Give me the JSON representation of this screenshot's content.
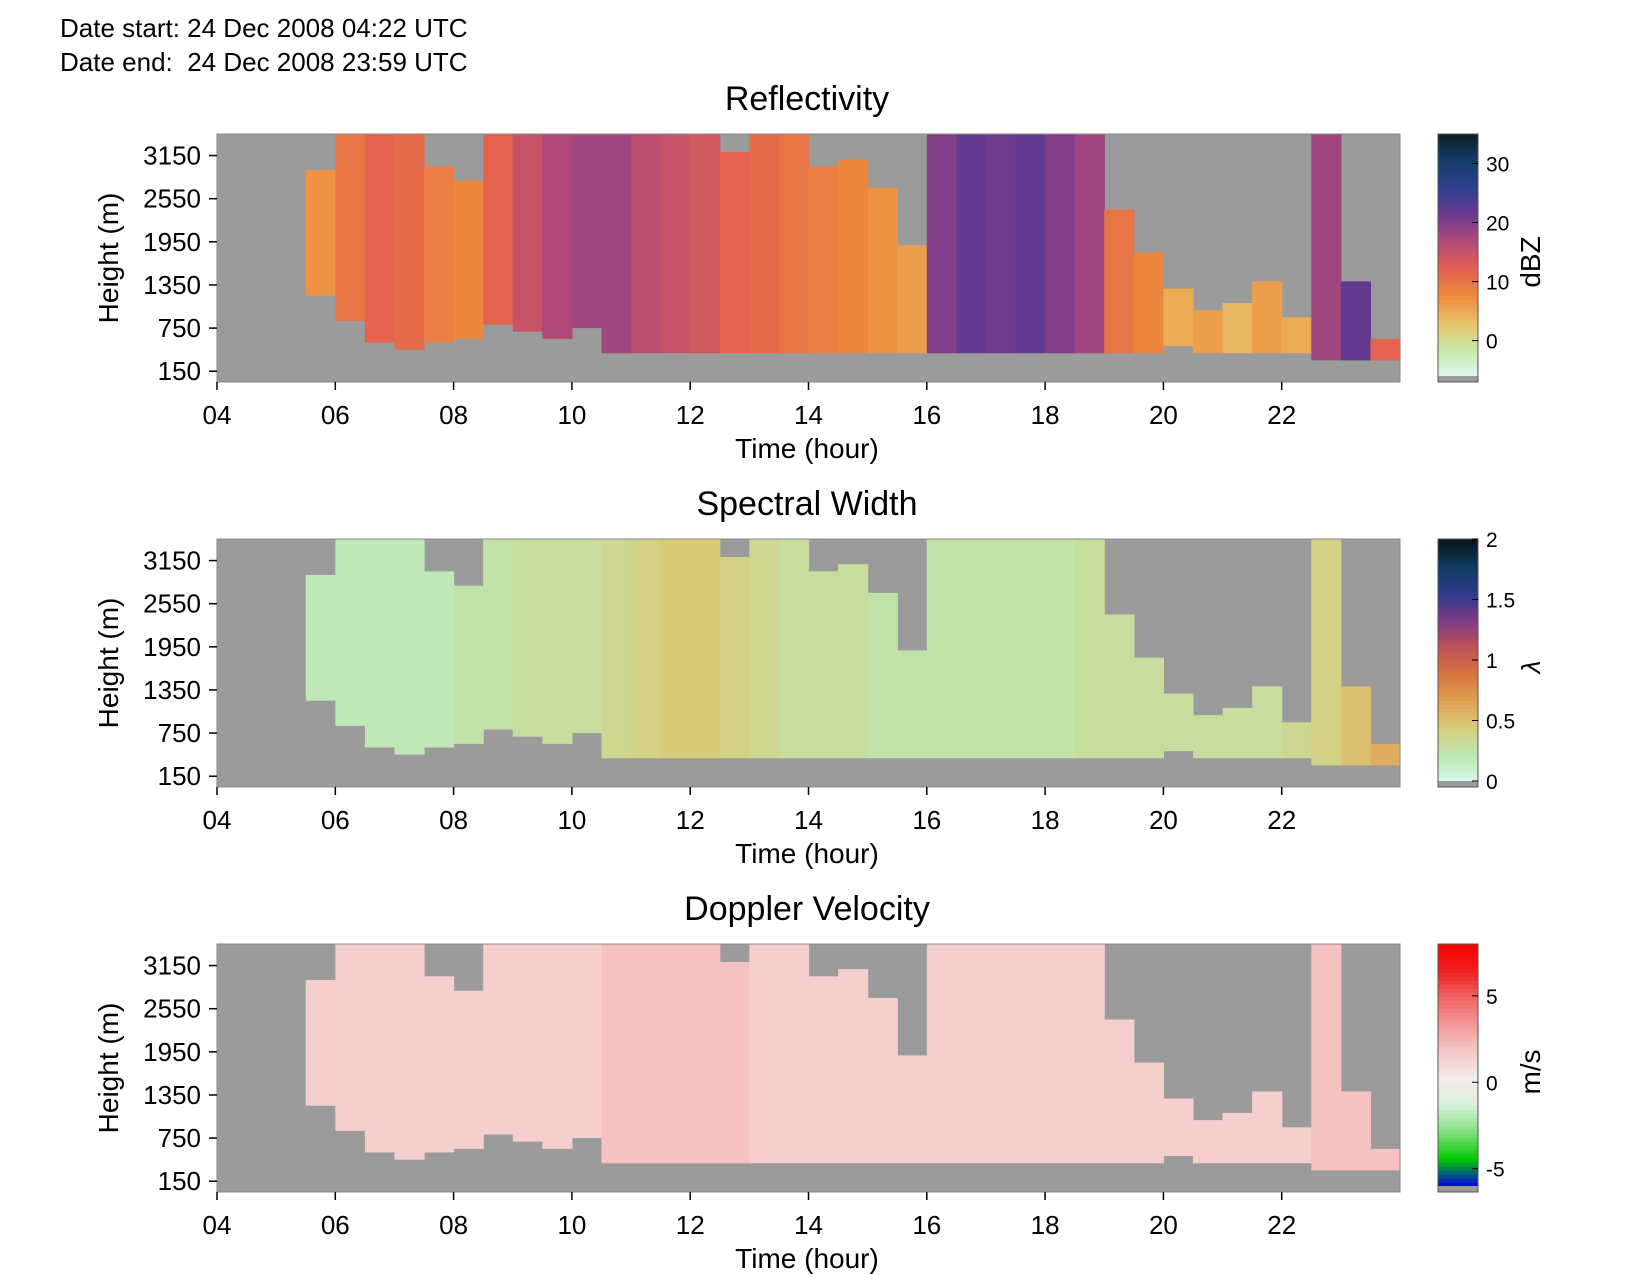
{
  "header": {
    "date_start": "Date start: 24 Dec 2008 04:22 UTC",
    "date_end": "Date end:  24 Dec 2008 23:59 UTC"
  },
  "chart_data": [
    {
      "type": "heatmap",
      "title": "Reflectivity",
      "xlabel": "Time (hour)",
      "ylabel": "Height (m)",
      "x_ticks": [
        "04",
        "06",
        "08",
        "10",
        "12",
        "14",
        "16",
        "18",
        "20",
        "22"
      ],
      "x_range_hours": [
        4,
        24
      ],
      "y_ticks": [
        "150",
        "750",
        "1350",
        "1950",
        "2550",
        "3150"
      ],
      "y_range_m": [
        0,
        3450
      ],
      "colorbar": {
        "label": "dBZ",
        "ticks": [
          "0",
          "10",
          "20",
          "30"
        ],
        "range": [
          -6,
          35
        ],
        "colors": [
          "#dff7ee",
          "#c8e8a8",
          "#e8c26a",
          "#ef8a3d",
          "#e2614f",
          "#b44a78",
          "#6b3a8e",
          "#2e3f8f",
          "#163e6a",
          "#0b1f24"
        ],
        "missing_color": "#9b9b9b"
      },
      "cloud_top_m": [
        0,
        0,
        0,
        2950,
        3450,
        3450,
        3450,
        3000,
        2800,
        3450,
        3450,
        3450,
        3450,
        3450,
        3450,
        3450,
        3450,
        3200,
        3450,
        3450,
        3000,
        3100,
        2700,
        1900,
        3450,
        3450,
        3450,
        3450,
        3450,
        3450,
        2400,
        1800,
        1300,
        1000,
        1100,
        1400,
        900,
        3450,
        1400,
        600
      ],
      "cloud_base_m": [
        0,
        0,
        0,
        1200,
        850,
        550,
        450,
        550,
        600,
        800,
        700,
        600,
        750,
        400,
        400,
        400,
        400,
        400,
        400,
        400,
        400,
        400,
        400,
        400,
        400,
        400,
        400,
        400,
        400,
        400,
        400,
        400,
        500,
        400,
        400,
        400,
        400,
        300,
        300,
        300
      ],
      "reflectivity_dbz": [
        null,
        null,
        null,
        7,
        10,
        12,
        11,
        9,
        8,
        12,
        15,
        17,
        18,
        18,
        16,
        15,
        14,
        12,
        11,
        10,
        9,
        8,
        7,
        6,
        20,
        22,
        21,
        22,
        20,
        18,
        10,
        8,
        5,
        6,
        4,
        6,
        5,
        18,
        22,
        12
      ]
    },
    {
      "type": "heatmap",
      "title": "Spectral Width",
      "xlabel": "Time (hour)",
      "ylabel": "Height (m)",
      "x_ticks": [
        "04",
        "06",
        "08",
        "10",
        "12",
        "14",
        "16",
        "18",
        "20",
        "22"
      ],
      "x_range_hours": [
        4,
        24
      ],
      "y_ticks": [
        "150",
        "750",
        "1350",
        "1950",
        "2550",
        "3150"
      ],
      "y_range_m": [
        0,
        3450
      ],
      "colorbar": {
        "label": "λ",
        "ticks": [
          "0",
          "0.5",
          "1",
          "1.5",
          "2"
        ],
        "range": [
          0,
          2
        ],
        "colors": [
          "#d8f8ea",
          "#bde6b0",
          "#d9cc7a",
          "#e0a050",
          "#d8743e",
          "#c0505a",
          "#7a3b86",
          "#2c3a8c",
          "#113a5e",
          "#061418"
        ],
        "missing_color": "#9b9b9b"
      },
      "cloud_top_m": [
        0,
        0,
        0,
        2950,
        3450,
        3450,
        3450,
        3000,
        2800,
        3450,
        3450,
        3450,
        3450,
        3450,
        3450,
        3450,
        3450,
        3200,
        3450,
        3450,
        3000,
        3100,
        2700,
        1900,
        3450,
        3450,
        3450,
        3450,
        3450,
        3450,
        2400,
        1800,
        1300,
        1000,
        1100,
        1400,
        900,
        3450,
        1400,
        600
      ],
      "cloud_base_m": [
        0,
        0,
        0,
        1200,
        850,
        550,
        450,
        550,
        600,
        800,
        700,
        600,
        750,
        400,
        400,
        400,
        400,
        400,
        400,
        400,
        400,
        400,
        400,
        400,
        400,
        400,
        400,
        400,
        400,
        400,
        400,
        400,
        500,
        400,
        400,
        400,
        400,
        300,
        300,
        300
      ],
      "spectral_width": [
        null,
        null,
        null,
        0.2,
        0.2,
        0.2,
        0.2,
        0.2,
        0.25,
        0.25,
        0.3,
        0.3,
        0.3,
        0.35,
        0.4,
        0.45,
        0.45,
        0.4,
        0.35,
        0.3,
        0.3,
        0.3,
        0.25,
        0.25,
        0.25,
        0.25,
        0.25,
        0.25,
        0.25,
        0.3,
        0.3,
        0.3,
        0.3,
        0.3,
        0.3,
        0.3,
        0.35,
        0.4,
        0.5,
        0.6
      ]
    },
    {
      "type": "heatmap",
      "title": "Doppler Velocity",
      "xlabel": "Time (hour)",
      "ylabel": "Height (m)",
      "x_ticks": [
        "04",
        "06",
        "08",
        "10",
        "12",
        "14",
        "16",
        "18",
        "20",
        "22"
      ],
      "x_range_hours": [
        4,
        24
      ],
      "y_ticks": [
        "150",
        "750",
        "1350",
        "1950",
        "2550",
        "3150"
      ],
      "y_range_m": [
        0,
        3450
      ],
      "colorbar": {
        "label": "m/s",
        "ticks": [
          "-5",
          "0",
          "5"
        ],
        "range": [
          -6,
          8
        ],
        "colors": [
          "#0000e8",
          "#00c800",
          "#7ee07e",
          "#d8f0d8",
          "#f6ecec",
          "#f5c8c8",
          "#f29a9a",
          "#f06666",
          "#ee2020",
          "#ff0000"
        ],
        "missing_color": "#9b9b9b"
      },
      "cloud_top_m": [
        0,
        0,
        0,
        2950,
        3450,
        3450,
        3450,
        3000,
        2800,
        3450,
        3450,
        3450,
        3450,
        3450,
        3450,
        3450,
        3450,
        3200,
        3450,
        3450,
        3000,
        3100,
        2700,
        1900,
        3450,
        3450,
        3450,
        3450,
        3450,
        3450,
        2400,
        1800,
        1300,
        1000,
        1100,
        1400,
        900,
        3450,
        1400,
        600
      ],
      "cloud_base_m": [
        0,
        0,
        0,
        1200,
        850,
        550,
        450,
        550,
        600,
        800,
        700,
        600,
        750,
        400,
        400,
        400,
        400,
        400,
        400,
        400,
        400,
        400,
        400,
        400,
        400,
        400,
        400,
        400,
        400,
        400,
        400,
        400,
        500,
        400,
        400,
        400,
        400,
        300,
        300,
        300
      ],
      "velocity_ms": [
        null,
        null,
        null,
        1.5,
        1.5,
        1.5,
        1.5,
        1.5,
        1.5,
        1.5,
        1.5,
        1.5,
        1.5,
        2,
        2,
        2,
        2,
        2,
        1.5,
        1.5,
        1.5,
        1.5,
        1.5,
        1.5,
        1.5,
        1.5,
        1.5,
        1.5,
        1.5,
        1.5,
        1.5,
        1.5,
        1.5,
        1.5,
        1.5,
        1.5,
        1.5,
        2,
        2,
        2
      ]
    }
  ]
}
